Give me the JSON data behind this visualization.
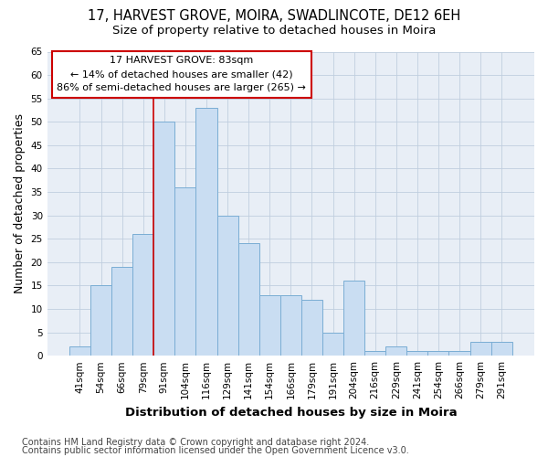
{
  "title": "17, HARVEST GROVE, MOIRA, SWADLINCOTE, DE12 6EH",
  "subtitle": "Size of property relative to detached houses in Moira",
  "xlabel": "Distribution of detached houses by size in Moira",
  "ylabel": "Number of detached properties",
  "footnote1": "Contains HM Land Registry data © Crown copyright and database right 2024.",
  "footnote2": "Contains public sector information licensed under the Open Government Licence v3.0.",
  "categories": [
    "41sqm",
    "54sqm",
    "66sqm",
    "79sqm",
    "91sqm",
    "104sqm",
    "116sqm",
    "129sqm",
    "141sqm",
    "154sqm",
    "166sqm",
    "179sqm",
    "191sqm",
    "204sqm",
    "216sqm",
    "229sqm",
    "241sqm",
    "254sqm",
    "266sqm",
    "279sqm",
    "291sqm"
  ],
  "values": [
    2,
    15,
    19,
    26,
    50,
    36,
    53,
    30,
    24,
    13,
    13,
    12,
    5,
    16,
    1,
    2,
    1,
    1,
    1,
    3,
    3
  ],
  "bar_color": "#c9ddf2",
  "bar_edge_color": "#7aadd4",
  "annotation_box_text": "17 HARVEST GROVE: 83sqm\n← 14% of detached houses are smaller (42)\n86% of semi-detached houses are larger (265) →",
  "annotation_box_color": "#ffffff",
  "annotation_box_edge_color": "#cc0000",
  "vline_x": 3.5,
  "vline_color": "#cc0000",
  "ylim": [
    0,
    65
  ],
  "yticks": [
    0,
    5,
    10,
    15,
    20,
    25,
    30,
    35,
    40,
    45,
    50,
    55,
    60,
    65
  ],
  "grid_color": "#c0cedf",
  "bg_color": "#e8eef6",
  "title_fontsize": 10.5,
  "subtitle_fontsize": 9.5,
  "ylabel_fontsize": 9,
  "xlabel_fontsize": 9.5,
  "tick_fontsize": 7.5,
  "annot_fontsize": 8,
  "footnote_fontsize": 7
}
